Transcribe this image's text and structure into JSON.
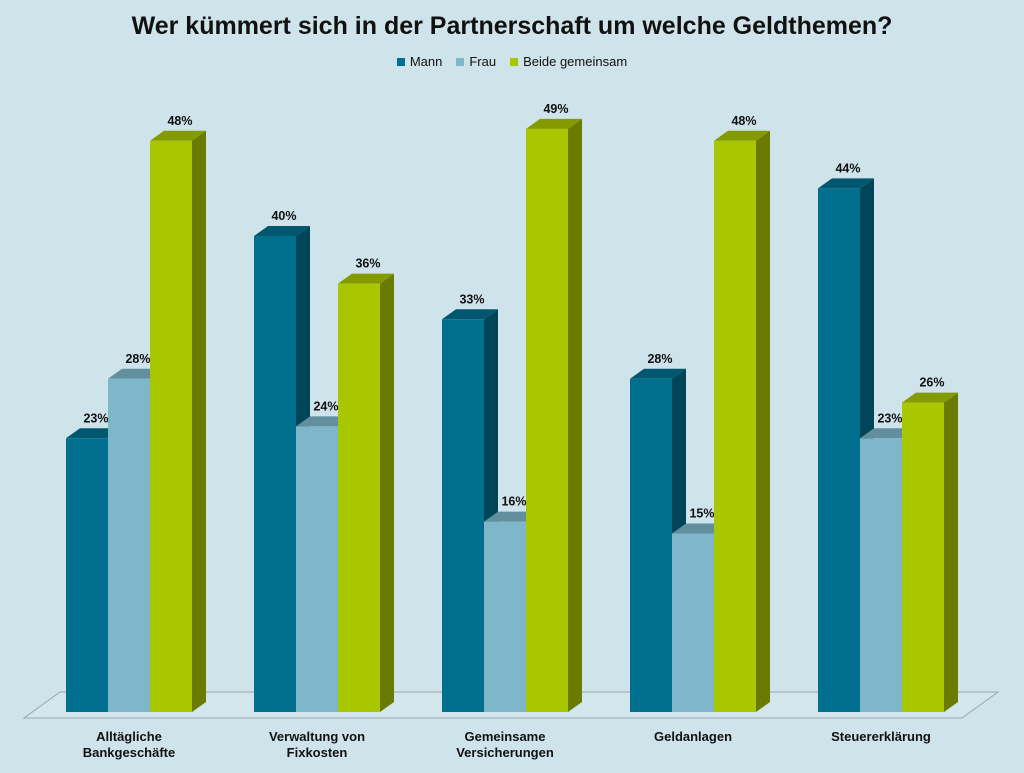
{
  "chart_data": {
    "type": "bar",
    "title": "Wer kümmert sich in der Partnerschaft um welche Geldthemen?",
    "categories": [
      [
        "Alltägliche",
        "Bankgeschäfte"
      ],
      [
        "Verwaltung von",
        "Fixkosten"
      ],
      [
        "Gemeinsame",
        "Versicherungen"
      ],
      [
        "Geldanlagen"
      ],
      [
        "Steuererklärung"
      ]
    ],
    "series": [
      {
        "name": "Mann",
        "color": "#006f8e",
        "values": [
          23,
          40,
          33,
          28,
          44
        ]
      },
      {
        "name": "Frau",
        "color": "#7db7c9",
        "values": [
          28,
          24,
          16,
          15,
          23
        ]
      },
      {
        "name": "Beide gemeinsam",
        "color": "#a9c700",
        "values": [
          48,
          36,
          49,
          48,
          26
        ]
      }
    ],
    "value_suffix": "%",
    "ylim": [
      0,
      50
    ],
    "legend_position": "top",
    "grid": false,
    "three_d": true
  }
}
